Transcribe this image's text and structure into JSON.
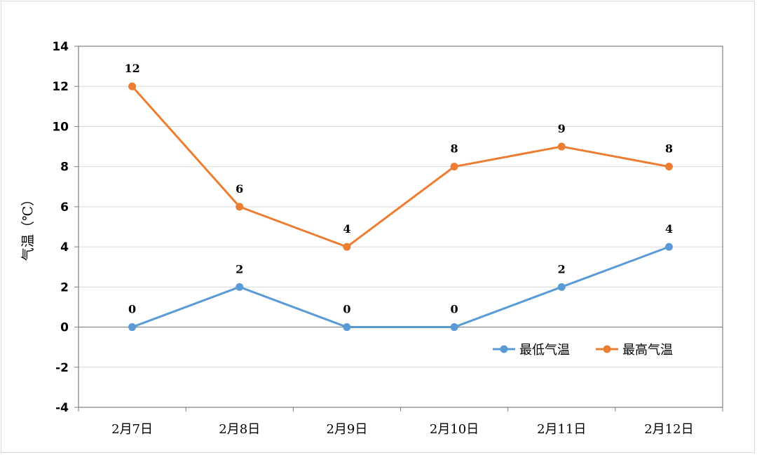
{
  "chart_data": {
    "type": "line",
    "categories": [
      "2月7日",
      "2月8日",
      "2月9日",
      "2月10日",
      "2月11日",
      "2月12日"
    ],
    "series": [
      {
        "name": "最低气温",
        "values": [
          0,
          2,
          0,
          0,
          2,
          4
        ],
        "color": "#5b9bd5"
      },
      {
        "name": "最高气温",
        "values": [
          12,
          6,
          4,
          8,
          9,
          8
        ],
        "color": "#ed7d31"
      }
    ],
    "ylabel": "气温（℃）",
    "ylim": [
      -4,
      14
    ],
    "yticks": [
      -4,
      -2,
      0,
      2,
      4,
      6,
      8,
      10,
      12,
      14
    ],
    "grid": true,
    "data_labels": true,
    "legend_position": "inside-lower-right"
  }
}
